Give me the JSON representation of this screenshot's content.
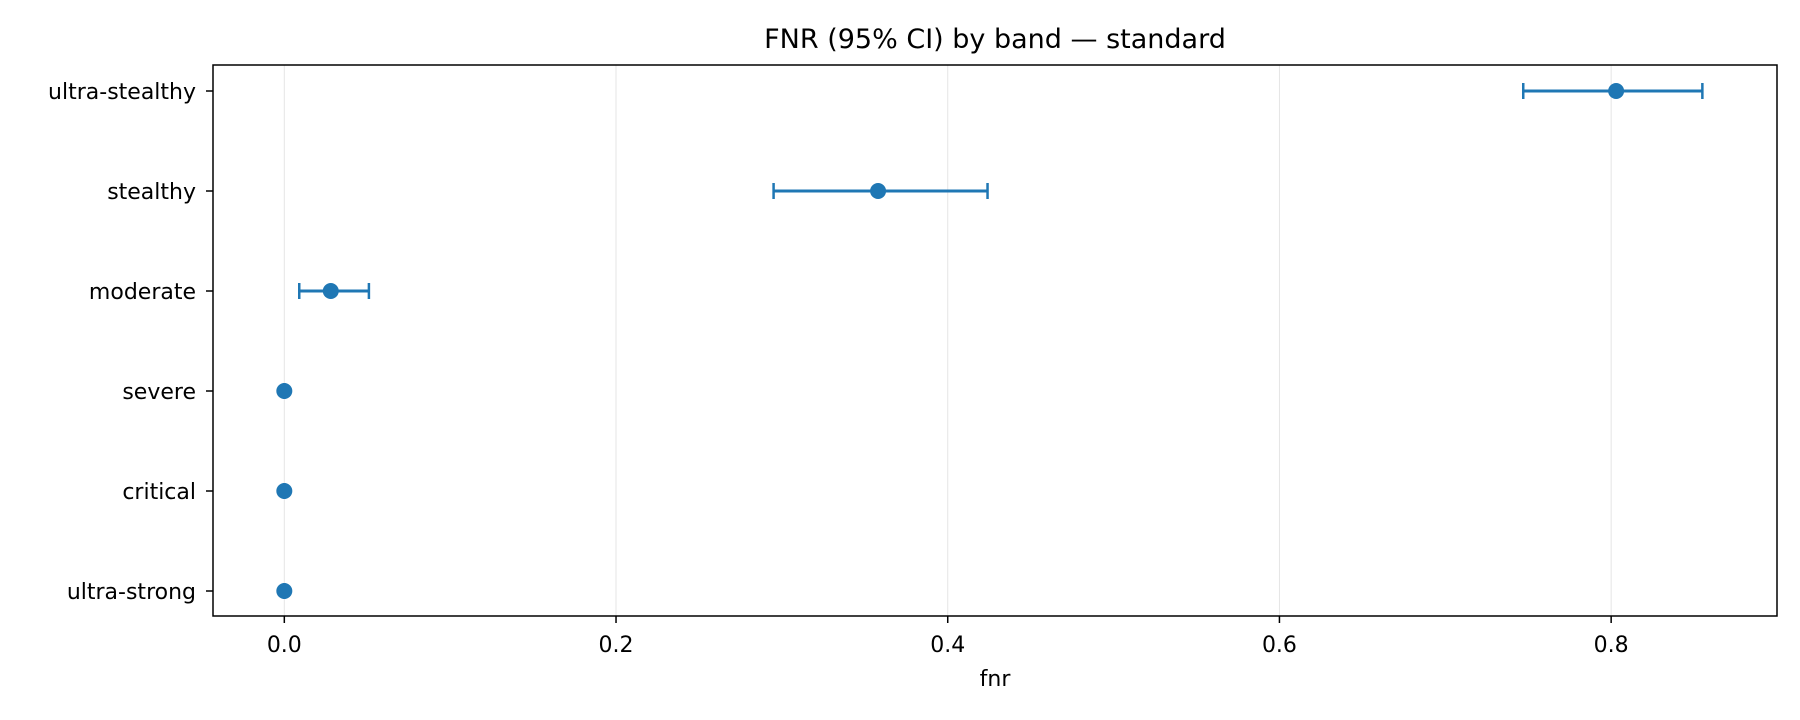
{
  "chart_data": {
    "type": "scatter",
    "title": "FNR (95% CI) by band — standard",
    "xlabel": "fnr",
    "ylabel": "",
    "xlim": [
      -0.043,
      0.9
    ],
    "x_ticks": [
      0.0,
      0.2,
      0.4,
      0.6,
      0.8
    ],
    "x_tick_labels": [
      "0.0",
      "0.2",
      "0.4",
      "0.6",
      "0.8"
    ],
    "grid": "x-major",
    "categories": [
      "ultra-stealthy",
      "stealthy",
      "moderate",
      "severe",
      "critical",
      "ultra-strong"
    ],
    "series": [
      {
        "values": [
          0.803,
          0.358,
          0.028,
          0.0,
          0.0,
          0.0
        ],
        "ci_low": [
          0.747,
          0.295,
          0.009,
          0.0,
          0.0,
          0.0
        ],
        "ci_high": [
          0.855,
          0.424,
          0.051,
          0.0,
          0.0,
          0.0
        ]
      }
    ],
    "colors": {
      "series": "#1f77b4",
      "grid": "#e5e5e5",
      "axes": "#000000"
    }
  }
}
